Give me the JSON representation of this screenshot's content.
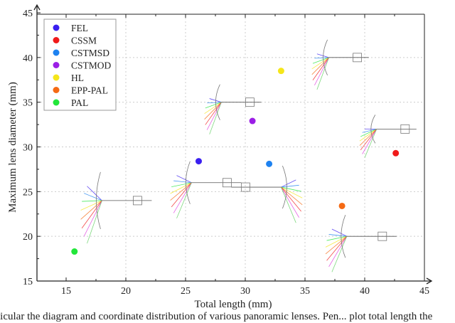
{
  "chart_data": {
    "type": "scatter",
    "title": "",
    "xlabel": "Total length (mm)",
    "ylabel": "Maximum lens diameter (mm)",
    "xlim": [
      15,
      45
    ],
    "ylim": [
      15,
      45
    ],
    "xticks": [
      15,
      20,
      25,
      30,
      35,
      40,
      45
    ],
    "yticks": [
      15,
      20,
      25,
      30,
      35,
      40,
      45
    ],
    "grid": true,
    "legend_position": "top-left",
    "series": [
      {
        "name": "FEL",
        "color": "#3a1ff0",
        "x": 26.1,
        "y": 28.4
      },
      {
        "name": "CSSM",
        "color": "#f01a1a",
        "x": 42.6,
        "y": 29.3
      },
      {
        "name": "CSTMSD",
        "color": "#1e82f0",
        "x": 32.0,
        "y": 28.1
      },
      {
        "name": "CSTMOD",
        "color": "#9b1ee6",
        "x": 30.6,
        "y": 32.9
      },
      {
        "name": "HL",
        "color": "#f5e61a",
        "x": 33.0,
        "y": 38.5
      },
      {
        "name": "EPP-PAL",
        "color": "#f56a14",
        "x": 38.1,
        "y": 23.4
      },
      {
        "name": "PAL",
        "color": "#22e63a",
        "x": 15.7,
        "y": 18.3
      }
    ]
  },
  "caption": "ticular the diagram and coordinate distribution of various panoramic lenses. Pen... plot total length the"
}
